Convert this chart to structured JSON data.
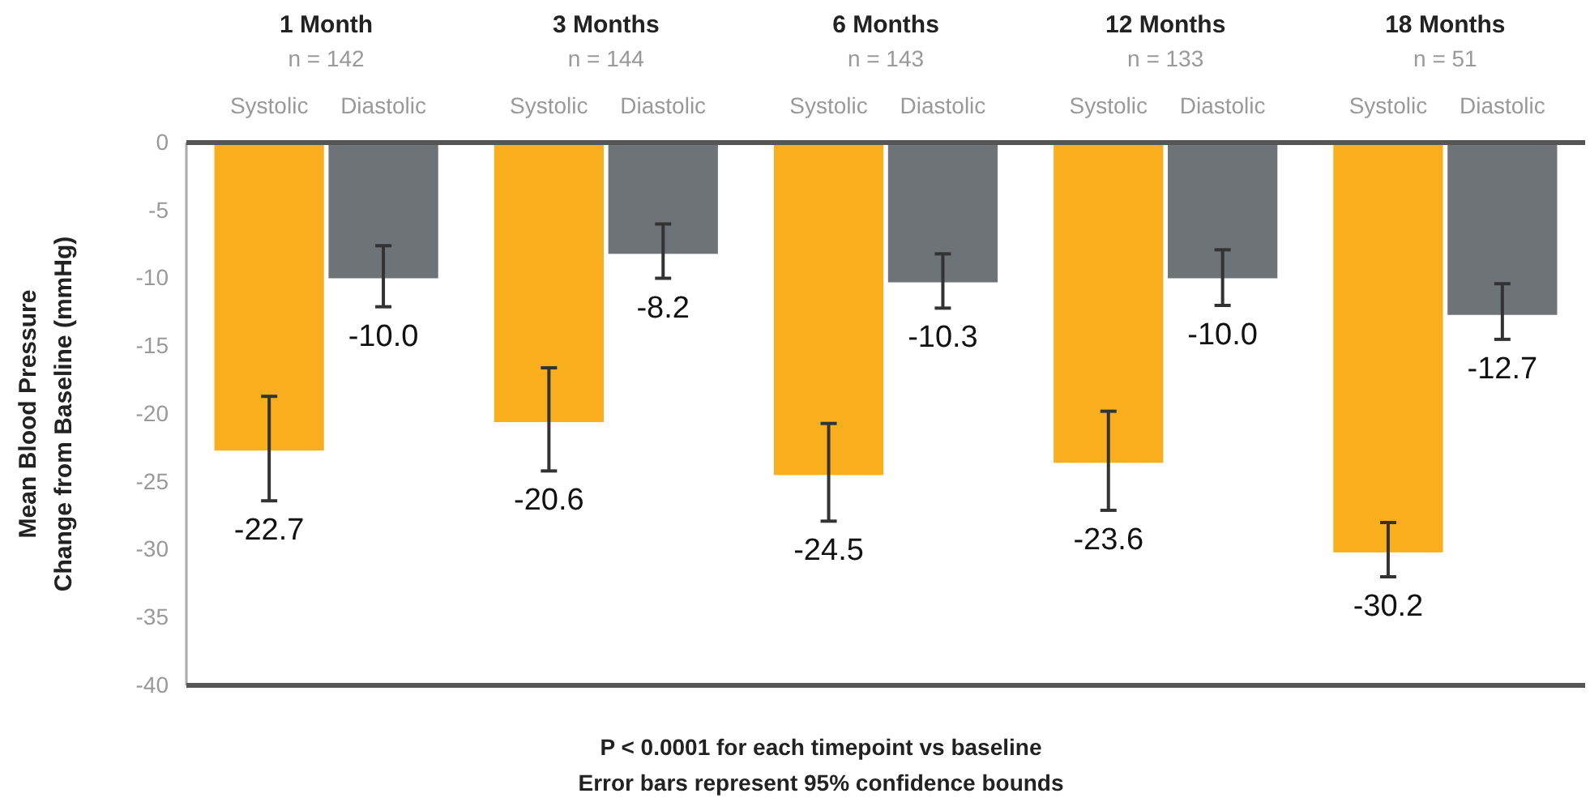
{
  "chart_data": {
    "type": "bar",
    "ylabel": "Mean Blood Pressure\nChange from Baseline (mmHg)",
    "categories": [
      "1 Month\nn = 142",
      "3 Months\nn = 144",
      "6 Months\nn = 143",
      "12 Months\nn = 133",
      "18 Months\nn = 51"
    ],
    "series": [
      {
        "name": "Systolic",
        "color": "#f9ae1e",
        "values": [
          -22.7,
          -20.6,
          -24.5,
          -23.6,
          -30.2
        ],
        "errors": [
          [
            -26.4,
            -18.7
          ],
          [
            -24.2,
            -16.6
          ],
          [
            -27.9,
            -20.7
          ],
          [
            -27.1,
            -19.8
          ],
          [
            -32.0,
            -28.0
          ]
        ],
        "value_labels": [
          "-22.7",
          "-20.6",
          "-24.5",
          "-23.6",
          "-30.2"
        ]
      },
      {
        "name": "Diastolic",
        "color": "#6e7377",
        "values": [
          -10.0,
          -8.2,
          -10.3,
          -10.0,
          -12.7
        ],
        "errors": [
          [
            -12.1,
            -7.6
          ],
          [
            -10.0,
            -6.0
          ],
          [
            -12.2,
            -8.2
          ],
          [
            -12.0,
            -7.9
          ],
          [
            -14.5,
            -10.4
          ]
        ],
        "value_labels": [
          "-10.0",
          "-8.2",
          "-10.3",
          "-10.0",
          "-12.7"
        ]
      }
    ],
    "ylim": [
      -40,
      0
    ],
    "yticks": [
      0,
      -5,
      -10,
      -15,
      -20,
      -25,
      -30,
      -35,
      -40
    ],
    "annotations": [
      "P < 0.0001 for each timepoint vs baseline",
      "Error bars represent 95% confidence bounds"
    ]
  }
}
